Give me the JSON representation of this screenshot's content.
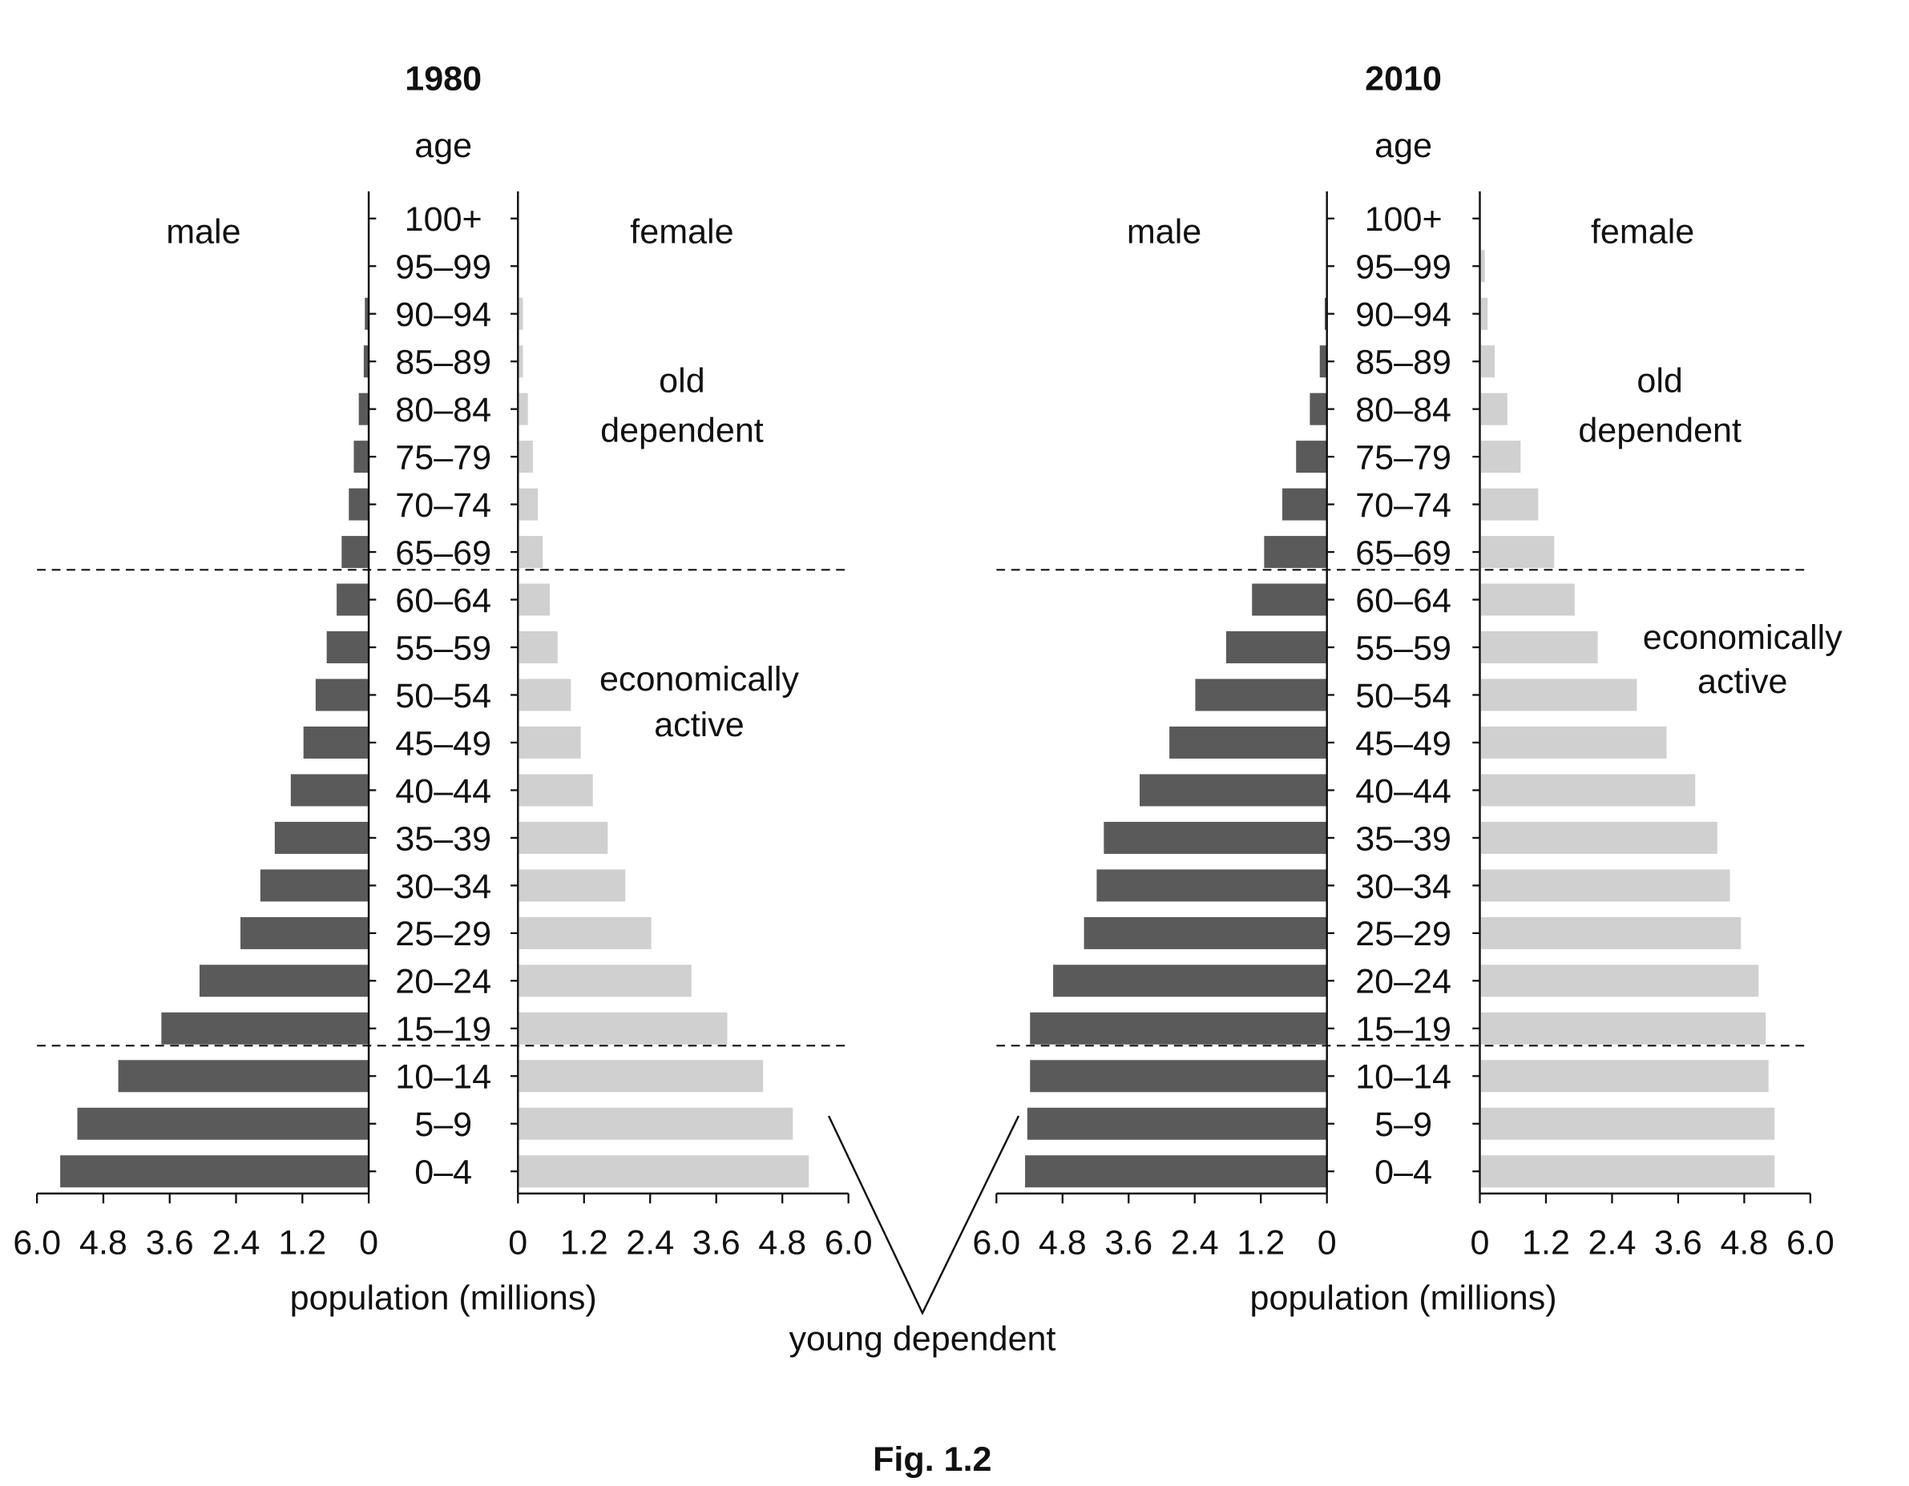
{
  "figure_caption": "Fig. 1.2",
  "annotation_young": "young dependent",
  "colors": {
    "male": "#5a5a5a",
    "female": "#d0d0d0",
    "axis": "#111111"
  },
  "chart_data": [
    {
      "type": "bar",
      "orientation": "horizontal-pyramid",
      "title": "1980",
      "age_label": "age",
      "xlabel": "population (millions)",
      "xlim": [
        0,
        6.0
      ],
      "xticks": [
        "6.0",
        "4.8",
        "3.6",
        "2.4",
        "1.2",
        "0"
      ],
      "xticks_female": [
        "0",
        "1.2",
        "2.4",
        "3.6",
        "4.8",
        "6.0"
      ],
      "male_label": "male",
      "female_label": "female",
      "zone_old": [
        "old",
        "dependent"
      ],
      "zone_active": [
        "economically",
        "active"
      ],
      "categories": [
        "0–4",
        "5–9",
        "10–14",
        "15–19",
        "20–24",
        "25–29",
        "30–34",
        "35–39",
        "40–44",
        "45–49",
        "50–54",
        "55–59",
        "60–64",
        "65–69",
        "70–74",
        "75–79",
        "80–84",
        "85–89",
        "90–94",
        "95–99",
        "100+"
      ],
      "series": [
        {
          "name": "male",
          "values": [
            5.58,
            5.27,
            4.53,
            3.75,
            3.06,
            2.32,
            1.96,
            1.7,
            1.41,
            1.18,
            0.96,
            0.76,
            0.58,
            0.49,
            0.36,
            0.27,
            0.18,
            0.09,
            0.07,
            0,
            0
          ]
        },
        {
          "name": "female",
          "values": [
            5.28,
            4.99,
            4.45,
            3.8,
            3.15,
            2.42,
            1.95,
            1.63,
            1.36,
            1.14,
            0.96,
            0.72,
            0.58,
            0.45,
            0.36,
            0.27,
            0.18,
            0.09,
            0.09,
            0,
            0
          ]
        }
      ]
    },
    {
      "type": "bar",
      "orientation": "horizontal-pyramid",
      "title": "2010",
      "age_label": "age",
      "xlabel": "population (millions)",
      "xlim": [
        0,
        6.0
      ],
      "xticks": [
        "6.0",
        "4.8",
        "3.6",
        "2.4",
        "1.2",
        "0"
      ],
      "xticks_female": [
        "0",
        "1.2",
        "2.4",
        "3.6",
        "4.8",
        "6.0"
      ],
      "male_label": "male",
      "female_label": "female",
      "zone_old": [
        "old",
        "dependent"
      ],
      "zone_active": [
        "economically",
        "active"
      ],
      "categories": [
        "0–4",
        "5–9",
        "10–14",
        "15–19",
        "20–24",
        "25–29",
        "30–34",
        "35–39",
        "40–44",
        "45–49",
        "50–54",
        "55–59",
        "60–64",
        "65–69",
        "70–74",
        "75–79",
        "80–84",
        "85–89",
        "90–94",
        "95–99",
        "100+"
      ],
      "series": [
        {
          "name": "male",
          "values": [
            5.48,
            5.44,
            5.39,
            5.39,
            4.97,
            4.41,
            4.18,
            4.05,
            3.4,
            2.86,
            2.39,
            1.83,
            1.36,
            1.14,
            0.81,
            0.56,
            0.31,
            0.13,
            0.04,
            0,
            0
          ]
        },
        {
          "name": "female",
          "values": [
            5.35,
            5.35,
            5.24,
            5.19,
            5.06,
            4.74,
            4.54,
            4.31,
            3.91,
            3.39,
            2.85,
            2.14,
            1.72,
            1.35,
            1.06,
            0.74,
            0.5,
            0.27,
            0.14,
            0.09,
            0
          ]
        }
      ]
    }
  ]
}
